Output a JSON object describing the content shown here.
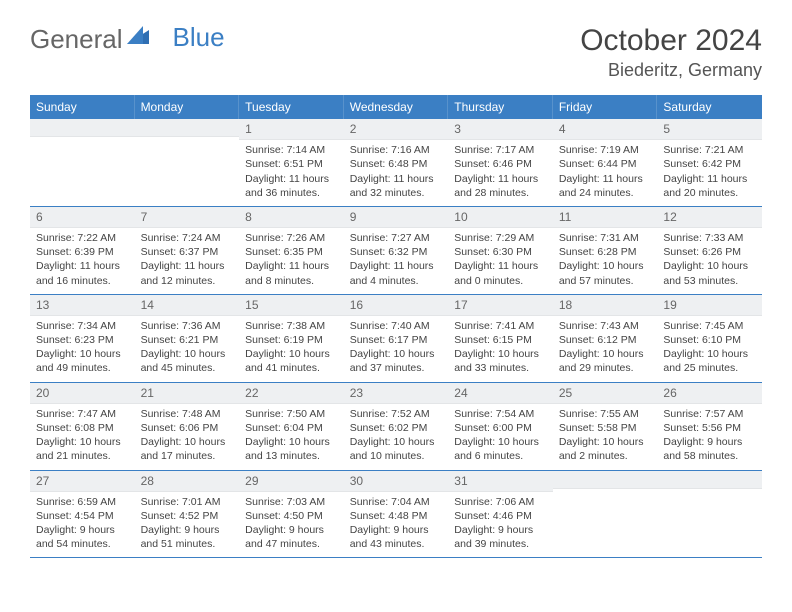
{
  "brand": {
    "general": "General",
    "blue": "Blue"
  },
  "header": {
    "month_year": "October 2024",
    "location": "Biederitz, Germany"
  },
  "colors": {
    "header_bg": "#3b7fc4",
    "daynum_bg": "#eef0f2",
    "border": "#3b7fc4"
  },
  "weekdays": [
    "Sunday",
    "Monday",
    "Tuesday",
    "Wednesday",
    "Thursday",
    "Friday",
    "Saturday"
  ],
  "weeks": [
    [
      {
        "n": "",
        "sr": "",
        "ss": "",
        "dl": ""
      },
      {
        "n": "",
        "sr": "",
        "ss": "",
        "dl": ""
      },
      {
        "n": "1",
        "sr": "Sunrise: 7:14 AM",
        "ss": "Sunset: 6:51 PM",
        "dl": "Daylight: 11 hours and 36 minutes."
      },
      {
        "n": "2",
        "sr": "Sunrise: 7:16 AM",
        "ss": "Sunset: 6:48 PM",
        "dl": "Daylight: 11 hours and 32 minutes."
      },
      {
        "n": "3",
        "sr": "Sunrise: 7:17 AM",
        "ss": "Sunset: 6:46 PM",
        "dl": "Daylight: 11 hours and 28 minutes."
      },
      {
        "n": "4",
        "sr": "Sunrise: 7:19 AM",
        "ss": "Sunset: 6:44 PM",
        "dl": "Daylight: 11 hours and 24 minutes."
      },
      {
        "n": "5",
        "sr": "Sunrise: 7:21 AM",
        "ss": "Sunset: 6:42 PM",
        "dl": "Daylight: 11 hours and 20 minutes."
      }
    ],
    [
      {
        "n": "6",
        "sr": "Sunrise: 7:22 AM",
        "ss": "Sunset: 6:39 PM",
        "dl": "Daylight: 11 hours and 16 minutes."
      },
      {
        "n": "7",
        "sr": "Sunrise: 7:24 AM",
        "ss": "Sunset: 6:37 PM",
        "dl": "Daylight: 11 hours and 12 minutes."
      },
      {
        "n": "8",
        "sr": "Sunrise: 7:26 AM",
        "ss": "Sunset: 6:35 PM",
        "dl": "Daylight: 11 hours and 8 minutes."
      },
      {
        "n": "9",
        "sr": "Sunrise: 7:27 AM",
        "ss": "Sunset: 6:32 PM",
        "dl": "Daylight: 11 hours and 4 minutes."
      },
      {
        "n": "10",
        "sr": "Sunrise: 7:29 AM",
        "ss": "Sunset: 6:30 PM",
        "dl": "Daylight: 11 hours and 0 minutes."
      },
      {
        "n": "11",
        "sr": "Sunrise: 7:31 AM",
        "ss": "Sunset: 6:28 PM",
        "dl": "Daylight: 10 hours and 57 minutes."
      },
      {
        "n": "12",
        "sr": "Sunrise: 7:33 AM",
        "ss": "Sunset: 6:26 PM",
        "dl": "Daylight: 10 hours and 53 minutes."
      }
    ],
    [
      {
        "n": "13",
        "sr": "Sunrise: 7:34 AM",
        "ss": "Sunset: 6:23 PM",
        "dl": "Daylight: 10 hours and 49 minutes."
      },
      {
        "n": "14",
        "sr": "Sunrise: 7:36 AM",
        "ss": "Sunset: 6:21 PM",
        "dl": "Daylight: 10 hours and 45 minutes."
      },
      {
        "n": "15",
        "sr": "Sunrise: 7:38 AM",
        "ss": "Sunset: 6:19 PM",
        "dl": "Daylight: 10 hours and 41 minutes."
      },
      {
        "n": "16",
        "sr": "Sunrise: 7:40 AM",
        "ss": "Sunset: 6:17 PM",
        "dl": "Daylight: 10 hours and 37 minutes."
      },
      {
        "n": "17",
        "sr": "Sunrise: 7:41 AM",
        "ss": "Sunset: 6:15 PM",
        "dl": "Daylight: 10 hours and 33 minutes."
      },
      {
        "n": "18",
        "sr": "Sunrise: 7:43 AM",
        "ss": "Sunset: 6:12 PM",
        "dl": "Daylight: 10 hours and 29 minutes."
      },
      {
        "n": "19",
        "sr": "Sunrise: 7:45 AM",
        "ss": "Sunset: 6:10 PM",
        "dl": "Daylight: 10 hours and 25 minutes."
      }
    ],
    [
      {
        "n": "20",
        "sr": "Sunrise: 7:47 AM",
        "ss": "Sunset: 6:08 PM",
        "dl": "Daylight: 10 hours and 21 minutes."
      },
      {
        "n": "21",
        "sr": "Sunrise: 7:48 AM",
        "ss": "Sunset: 6:06 PM",
        "dl": "Daylight: 10 hours and 17 minutes."
      },
      {
        "n": "22",
        "sr": "Sunrise: 7:50 AM",
        "ss": "Sunset: 6:04 PM",
        "dl": "Daylight: 10 hours and 13 minutes."
      },
      {
        "n": "23",
        "sr": "Sunrise: 7:52 AM",
        "ss": "Sunset: 6:02 PM",
        "dl": "Daylight: 10 hours and 10 minutes."
      },
      {
        "n": "24",
        "sr": "Sunrise: 7:54 AM",
        "ss": "Sunset: 6:00 PM",
        "dl": "Daylight: 10 hours and 6 minutes."
      },
      {
        "n": "25",
        "sr": "Sunrise: 7:55 AM",
        "ss": "Sunset: 5:58 PM",
        "dl": "Daylight: 10 hours and 2 minutes."
      },
      {
        "n": "26",
        "sr": "Sunrise: 7:57 AM",
        "ss": "Sunset: 5:56 PM",
        "dl": "Daylight: 9 hours and 58 minutes."
      }
    ],
    [
      {
        "n": "27",
        "sr": "Sunrise: 6:59 AM",
        "ss": "Sunset: 4:54 PM",
        "dl": "Daylight: 9 hours and 54 minutes."
      },
      {
        "n": "28",
        "sr": "Sunrise: 7:01 AM",
        "ss": "Sunset: 4:52 PM",
        "dl": "Daylight: 9 hours and 51 minutes."
      },
      {
        "n": "29",
        "sr": "Sunrise: 7:03 AM",
        "ss": "Sunset: 4:50 PM",
        "dl": "Daylight: 9 hours and 47 minutes."
      },
      {
        "n": "30",
        "sr": "Sunrise: 7:04 AM",
        "ss": "Sunset: 4:48 PM",
        "dl": "Daylight: 9 hours and 43 minutes."
      },
      {
        "n": "31",
        "sr": "Sunrise: 7:06 AM",
        "ss": "Sunset: 4:46 PM",
        "dl": "Daylight: 9 hours and 39 minutes."
      },
      {
        "n": "",
        "sr": "",
        "ss": "",
        "dl": ""
      },
      {
        "n": "",
        "sr": "",
        "ss": "",
        "dl": ""
      }
    ]
  ]
}
